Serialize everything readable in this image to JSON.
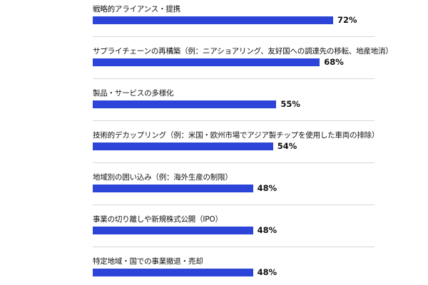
{
  "chart_data": {
    "type": "bar",
    "orientation": "horizontal",
    "categories": [
      "戦略的アライアンス・提携",
      "サプライチェーンの再構築（例：ニアショアリング、友好国への調達先の移転、地産地消）",
      "製品・サービスの多様化",
      "技術的デカップリング（例：米国・欧州市場でアジア製チップを使用した車両の排除）",
      "地域別の囲い込み（例：海外生産の制限）",
      "事業の切り離しや新規株式公開（IPO）",
      "特定地域・国での事業撤退・売却"
    ],
    "values": [
      72,
      68,
      55,
      54,
      48,
      48,
      48
    ],
    "value_labels": [
      "72%",
      "68%",
      "55%",
      "54%",
      "48%",
      "48%",
      "48%"
    ],
    "xlim": [
      0,
      100
    ],
    "grid": false,
    "bar_color": "#2c44d8"
  }
}
